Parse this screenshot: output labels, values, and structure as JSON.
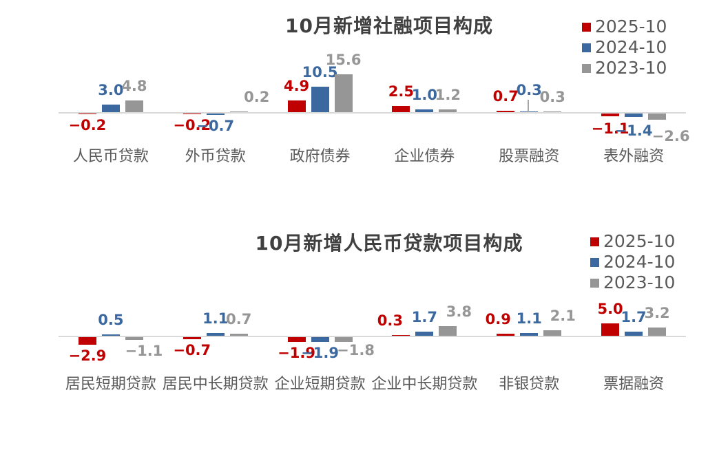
{
  "page": {
    "background": "#ffffff"
  },
  "palette": {
    "red": "#C00000",
    "blue": "#3C68A0",
    "gray": "#969696",
    "title_text": "#404040",
    "secondary_text": "#595959",
    "axis_line": "#D9D9D9",
    "leader_line": "#A6A6A6"
  },
  "chart_data": [
    {
      "type": "bar",
      "title": "10月新增社融项目构成",
      "categories": [
        "人民币贷款",
        "外币贷款",
        "政府债券",
        "企业债券",
        "股票融资",
        "表外融资"
      ],
      "series": [
        {
          "name": "2025-10",
          "color": "#C00000",
          "values": [
            -0.2,
            -0.2,
            4.9,
            2.5,
            0.7,
            -1.1
          ]
        },
        {
          "name": "2024-10",
          "color": "#3C68A0",
          "values": [
            3.0,
            -0.7,
            10.5,
            1.0,
            0.3,
            -1.4
          ]
        },
        {
          "name": "2023-10",
          "color": "#969696",
          "values": [
            4.8,
            0.2,
            15.6,
            1.2,
            0.3,
            -2.6
          ]
        }
      ],
      "legend_position": "top-right",
      "value_label_format": "0.0",
      "gridlines": false,
      "approx_value_range": [
        -2.6,
        15.6
      ]
    },
    {
      "type": "bar",
      "title": "10月新增人民币贷款项目构成",
      "categories": [
        "居民短期贷款",
        "居民中长期贷款",
        "企业短期贷款",
        "企业中长期贷款",
        "非银贷款",
        "票据融资"
      ],
      "series": [
        {
          "name": "2025-10",
          "color": "#C00000",
          "values": [
            -2.9,
            -0.7,
            -1.9,
            0.3,
            0.9,
            5.0
          ]
        },
        {
          "name": "2024-10",
          "color": "#3C68A0",
          "values": [
            0.5,
            1.1,
            -1.9,
            1.7,
            1.1,
            1.7
          ]
        },
        {
          "name": "2023-10",
          "color": "#969696",
          "values": [
            -1.1,
            0.7,
            -1.8,
            3.8,
            2.1,
            3.2
          ]
        }
      ],
      "legend_position": "top-right",
      "value_label_format": "0.0",
      "gridlines": false,
      "approx_value_range": [
        -2.9,
        5.0
      ]
    }
  ]
}
